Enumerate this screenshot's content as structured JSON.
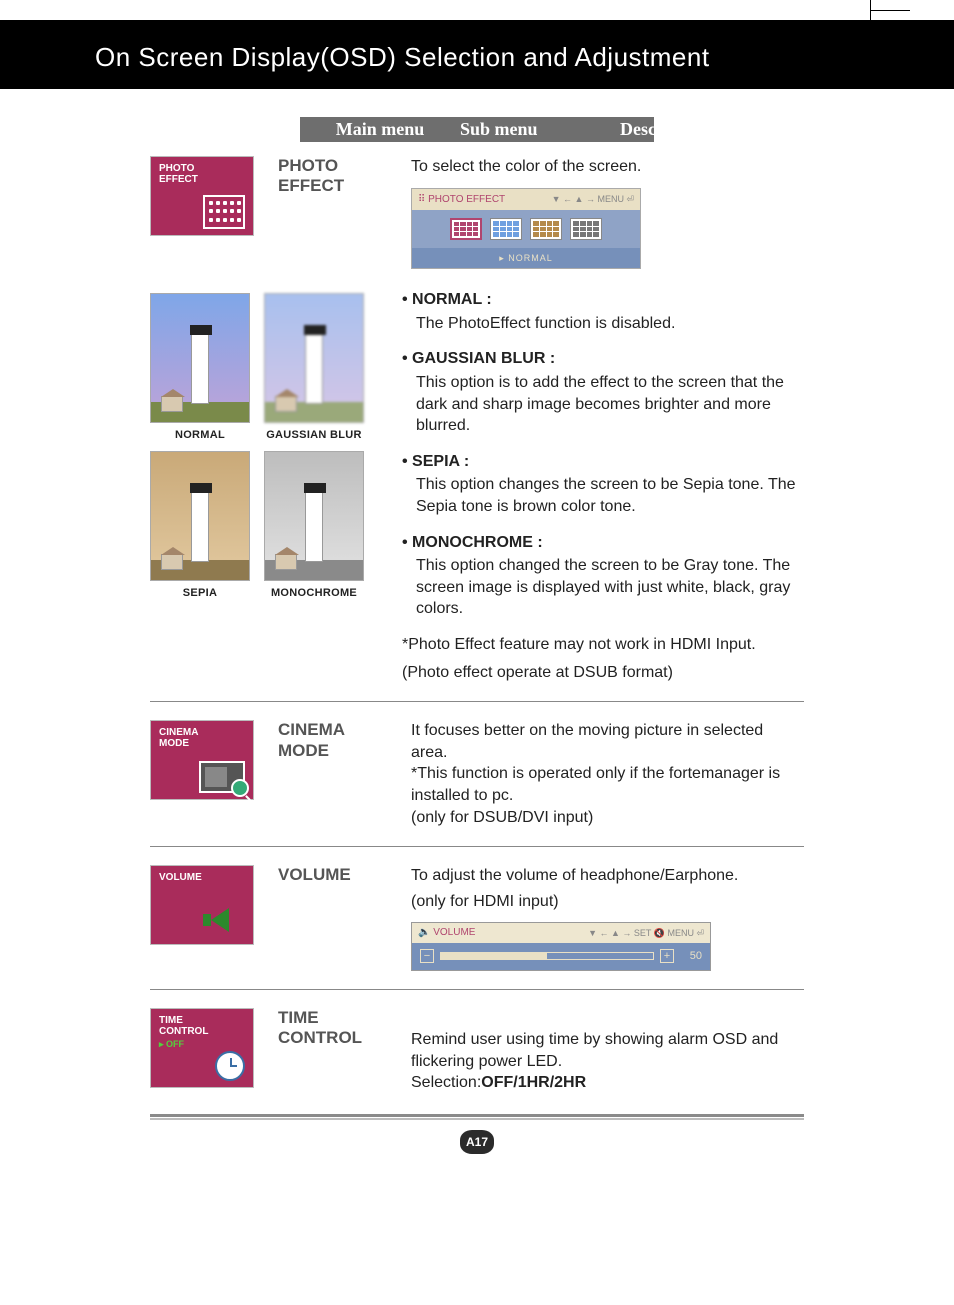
{
  "page": {
    "title": "On Screen Display(OSD) Selection and Adjustment",
    "number_badge": "A17"
  },
  "colors": {
    "tile_bg": "#a92c5b",
    "header_bar": "#6e6e6e",
    "osd_panel_top": "#e9e0c5",
    "osd_panel_mid": "#8fa3c6",
    "osd_panel_bot": "#7690ba",
    "accent_pink": "#b0456e",
    "speaker_green": "#2c8a2c",
    "time_off_green": "#54d03d"
  },
  "header_row": {
    "col1": "Main menu",
    "col2": "Sub menu",
    "col3": "Description"
  },
  "sections": {
    "photo_effect": {
      "tile_line1": "PHOTO",
      "tile_line2": "EFFECT",
      "submenu": "PHOTO EFFECT",
      "intro": "To select the color of the screen.",
      "panel_title": "PHOTO  EFFECT",
      "panel_nav": "▼ ←   ▲ →   MENU ⏎",
      "panel_footer": "▸   NORMAL",
      "thumbs": [
        {
          "label": "NORMAL",
          "sky": "linear-gradient(#7fa6e8,#bfa3d8)",
          "ground": "#7a8a4a"
        },
        {
          "label": "GAUSSIAN BLUR",
          "sky": "linear-gradient(#a8c0ee,#d6c6e6)",
          "ground": "#9aa97a",
          "blur": true
        },
        {
          "label": "SEPIA",
          "sky": "linear-gradient(#c9a978,#e2c9a0)",
          "ground": "#8f7a4f"
        },
        {
          "label": "MONOCHROME",
          "sky": "linear-gradient(#bdbdbd,#e2e2e2)",
          "ground": "#8a8a8a"
        }
      ],
      "effects": [
        {
          "head": "• NORMAL :",
          "body": "The PhotoEffect function is disabled."
        },
        {
          "head": "• GAUSSIAN BLUR :",
          "body": "This option is to add the effect to the screen that the dark and sharp image becomes brighter and more blurred."
        },
        {
          "head": "• SEPIA :",
          "body": "This option changes the screen to be Sepia tone. The Sepia tone is brown color tone."
        },
        {
          "head": "• MONOCHROME :",
          "body": "This option changed the screen to be Gray tone. The screen image is displayed with just white, black, gray colors."
        }
      ],
      "note1": "*Photo Effect feature may not work in HDMI Input.",
      "note2": "(Photo effect operate at DSUB format)"
    },
    "cinema_mode": {
      "tile_line1": "CINEMA",
      "tile_line2": "MODE",
      "submenu": "CINEMA MODE",
      "desc": "It focuses better on the moving picture in selected area.\n*This function is operated only if the fortemanager is installed to pc.\n(only for DSUB/DVI input)"
    },
    "volume": {
      "tile_line1": "VOLUME",
      "submenu": "VOLUME",
      "desc_l1": "To adjust the volume of headphone/Earphone.",
      "desc_l2": "(only for HDMI input)",
      "osd_title": "VOLUME",
      "osd_nav": "▼ ←   ▲ →   SET 🔇   MENU ⏎",
      "value": 50,
      "max": 100
    },
    "time_control": {
      "tile_line1": "TIME",
      "tile_line2": "CONTROL",
      "tile_sub": "▸ OFF",
      "submenu": "TIME CONTROL",
      "desc_pre": "Remind user using time by showing alarm OSD and flickering power LED.\nSelection:",
      "desc_bold": "OFF/1HR/2HR"
    }
  }
}
